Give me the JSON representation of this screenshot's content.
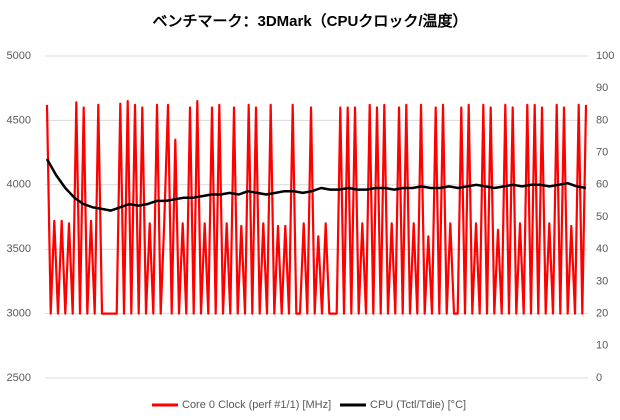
{
  "chart_data": {
    "type": "line",
    "title": "ベンチマーク：3DMark（CPUクロック/温度）",
    "ylim": [
      2500,
      5000
    ],
    "yticks": [
      2500,
      3000,
      3500,
      4000,
      4500,
      5000
    ],
    "y2lim": [
      0,
      100
    ],
    "y2ticks": [
      0,
      10,
      20,
      30,
      40,
      50,
      60,
      70,
      80,
      90,
      100
    ],
    "grid": true,
    "legend": "bottom",
    "series": [
      {
        "name": "Core 0 Clock (perf #1/1) [MHz]",
        "color": "#ff0000",
        "values": [
          4620,
          3000,
          3720,
          3000,
          3720,
          3000,
          3700,
          3000,
          4640,
          3000,
          4600,
          3000,
          3720,
          3000,
          4620,
          3000,
          3000,
          3000,
          3000,
          3000,
          4630,
          3000,
          4650,
          3000,
          4620,
          3000,
          4600,
          3000,
          3700,
          3000,
          4620,
          3000,
          3720,
          4620,
          3000,
          4350,
          3000,
          3700,
          3000,
          4600,
          3000,
          4650,
          3000,
          3700,
          3000,
          4600,
          3000,
          4620,
          3000,
          3700,
          3000,
          4600,
          3000,
          3680,
          3000,
          4620,
          3000,
          4600,
          3000,
          3700,
          3000,
          4620,
          3000,
          3680,
          3000,
          3680,
          3000,
          4620,
          3000,
          3000,
          3700,
          3000,
          4600,
          3000,
          3600,
          3000,
          3700,
          3000,
          3000,
          3000,
          4600,
          3000,
          4600,
          3000,
          4600,
          3000,
          3700,
          3000,
          4620,
          3000,
          4600,
          3000,
          4620,
          3000,
          3700,
          3000,
          4600,
          3000,
          4620,
          3000,
          3700,
          3000,
          4620,
          3000,
          3600,
          3000,
          4600,
          3000,
          4620,
          3000,
          3700,
          3000,
          3000,
          4600,
          3000,
          4620,
          3000,
          3700,
          3000,
          4620,
          3000,
          4600,
          3000,
          3650,
          3000,
          4620,
          3000,
          4600,
          3000,
          3700,
          3000,
          4620,
          3000,
          4620,
          3000,
          4600,
          3000,
          3700,
          3000,
          4620,
          3000,
          4600,
          3000,
          3680,
          3000,
          4620,
          3000,
          4620
        ]
      },
      {
        "name": "CPU (Tctl/Tdie) [°C]",
        "color": "#000000",
        "axis": "y2",
        "values": [
          68,
          63,
          59,
          56,
          54,
          53,
          52.5,
          52,
          53,
          54,
          53.5,
          54,
          55,
          55,
          55.5,
          56,
          56,
          56.5,
          57,
          57,
          57.5,
          57,
          58,
          57.5,
          57,
          57.5,
          58,
          58,
          57.5,
          58,
          59,
          58.5,
          58.5,
          59,
          58.5,
          58.5,
          59,
          59,
          58.5,
          59,
          59,
          59.5,
          59,
          59,
          59.5,
          59,
          59.5,
          60,
          59.5,
          59,
          59.5,
          60,
          59.5,
          60,
          60,
          59.5,
          60,
          60.5,
          59.5,
          59
        ]
      }
    ]
  }
}
